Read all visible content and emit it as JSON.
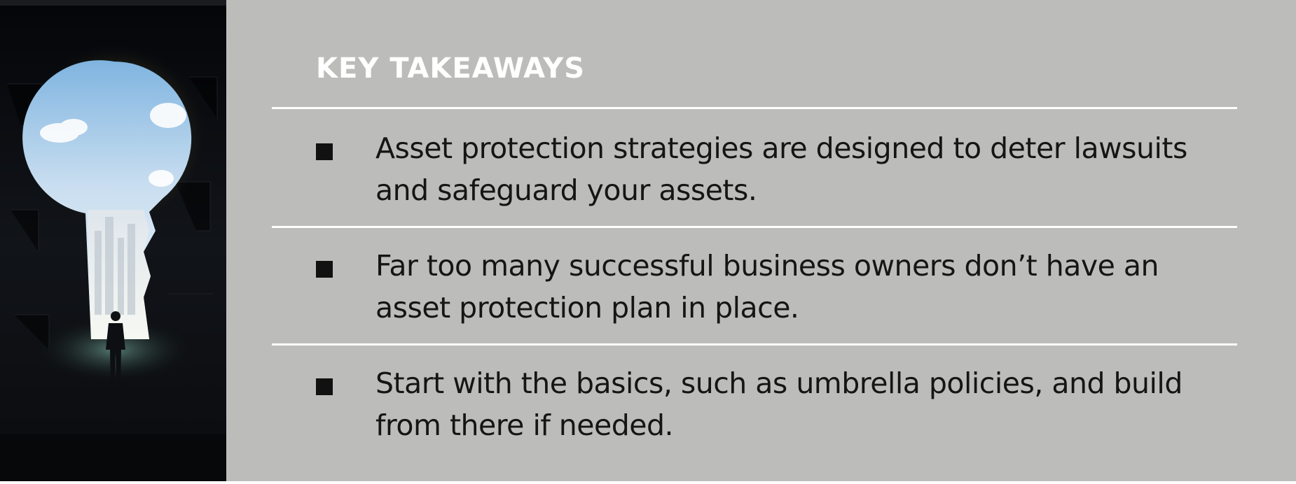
{
  "heading": "KEY TAKEAWAYS",
  "takeaways": [
    "Asset protection strategies are designed to deter lawsuits and safeguard your assets.",
    "Far too many successful business owners don’t have an asset protection plan in place.",
    "Start with the basics, such as umbrella policies, and build from there if needed."
  ],
  "colors": {
    "panel_background": "#bcbcba",
    "heading_text": "#ffffff",
    "divider": "#ffffff",
    "body_text": "#151515",
    "bullet": "#111111"
  },
  "icons": {
    "bullet": "square-bullet-icon",
    "illustration": "keyhole-illustration"
  }
}
